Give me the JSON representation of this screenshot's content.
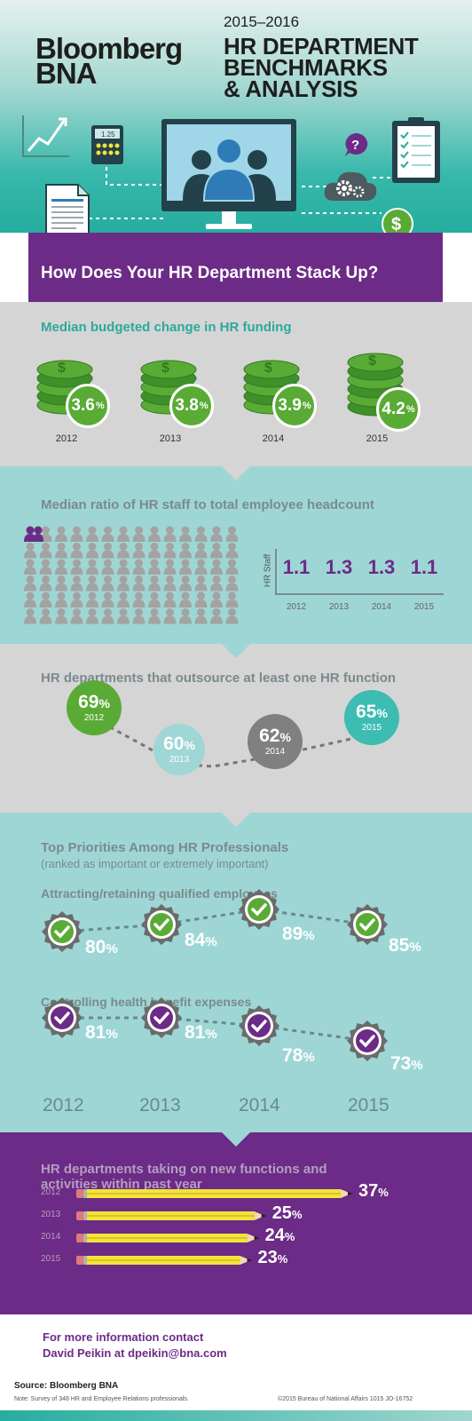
{
  "header": {
    "logo_line1": "Bloomberg",
    "logo_line2": "BNA",
    "years": "2015–2016",
    "title_line1": "HR DEPARTMENT",
    "title_line2": "BENCHMARKS",
    "title_line3": "& ANALYSIS",
    "calculator_display": "1.25"
  },
  "banner": {
    "text": "How Does Your HR Department Stack Up?"
  },
  "funding": {
    "title": "Median budgeted change in HR funding",
    "items": [
      {
        "year": "2012",
        "value": "3.6",
        "unit": "%"
      },
      {
        "year": "2013",
        "value": "3.8",
        "unit": "%"
      },
      {
        "year": "2014",
        "value": "3.9",
        "unit": "%"
      },
      {
        "year": "2015",
        "value": "4.2",
        "unit": "%"
      }
    ]
  },
  "ratio": {
    "title": "Median ratio of HR staff to total employee headcount",
    "axis_label": "HR Staff",
    "items": [
      {
        "year": "2012",
        "value": "1.1"
      },
      {
        "year": "2013",
        "value": "1.3"
      },
      {
        "year": "2014",
        "value": "1.3"
      },
      {
        "year": "2015",
        "value": "1.1"
      }
    ]
  },
  "outsource": {
    "title": "HR departments that outsource at least one HR function",
    "items": [
      {
        "year": "2012",
        "value": "69",
        "unit": "%",
        "color": "#5aab36"
      },
      {
        "year": "2013",
        "value": "60",
        "unit": "%",
        "color": "#9fd6d6"
      },
      {
        "year": "2014",
        "value": "62",
        "unit": "%",
        "color": "#808080"
      },
      {
        "year": "2015",
        "value": "65",
        "unit": "%",
        "color": "#3dbcb1"
      }
    ]
  },
  "priorities": {
    "title": "Top Priorities Among HR Professionals",
    "subtitle": "(ranked as important or extremely important)",
    "attract_title": "Attracting/retaining qualified employees",
    "attract": [
      {
        "value": "80",
        "unit": "%"
      },
      {
        "value": "84",
        "unit": "%"
      },
      {
        "value": "89",
        "unit": "%"
      },
      {
        "value": "85",
        "unit": "%"
      }
    ],
    "health_title": "Controlling health benefit expenses",
    "health": [
      {
        "value": "81",
        "unit": "%"
      },
      {
        "value": "81",
        "unit": "%"
      },
      {
        "value": "78",
        "unit": "%"
      },
      {
        "value": "73",
        "unit": "%"
      }
    ],
    "years": [
      "2012",
      "2013",
      "2014",
      "2015"
    ]
  },
  "new_functions": {
    "title_line1": "HR departments taking on new functions and",
    "title_line2": "activities within past year",
    "items": [
      {
        "year": "2012",
        "value": "37",
        "unit": "%"
      },
      {
        "year": "2013",
        "value": "25",
        "unit": "%"
      },
      {
        "year": "2014",
        "value": "24",
        "unit": "%"
      },
      {
        "year": "2015",
        "value": "23",
        "unit": "%"
      }
    ]
  },
  "contact": {
    "line1": "For more information contact",
    "line2": "David Peikin at dpeikin@bna.com"
  },
  "footer": {
    "source": "Source: Bloomberg BNA",
    "note": "Note: Survey of 348 HR and Employee Relations professionals.",
    "copyright": "©2015 Bureau of National Affairs    1015  JO-16752"
  },
  "colors": {
    "purple": "#6c2b86",
    "teal": "#2ba99d",
    "light_teal": "#9ed6d6",
    "gray": "#d5d5d5",
    "green": "#5aab36",
    "yellow": "#f3e33a"
  }
}
